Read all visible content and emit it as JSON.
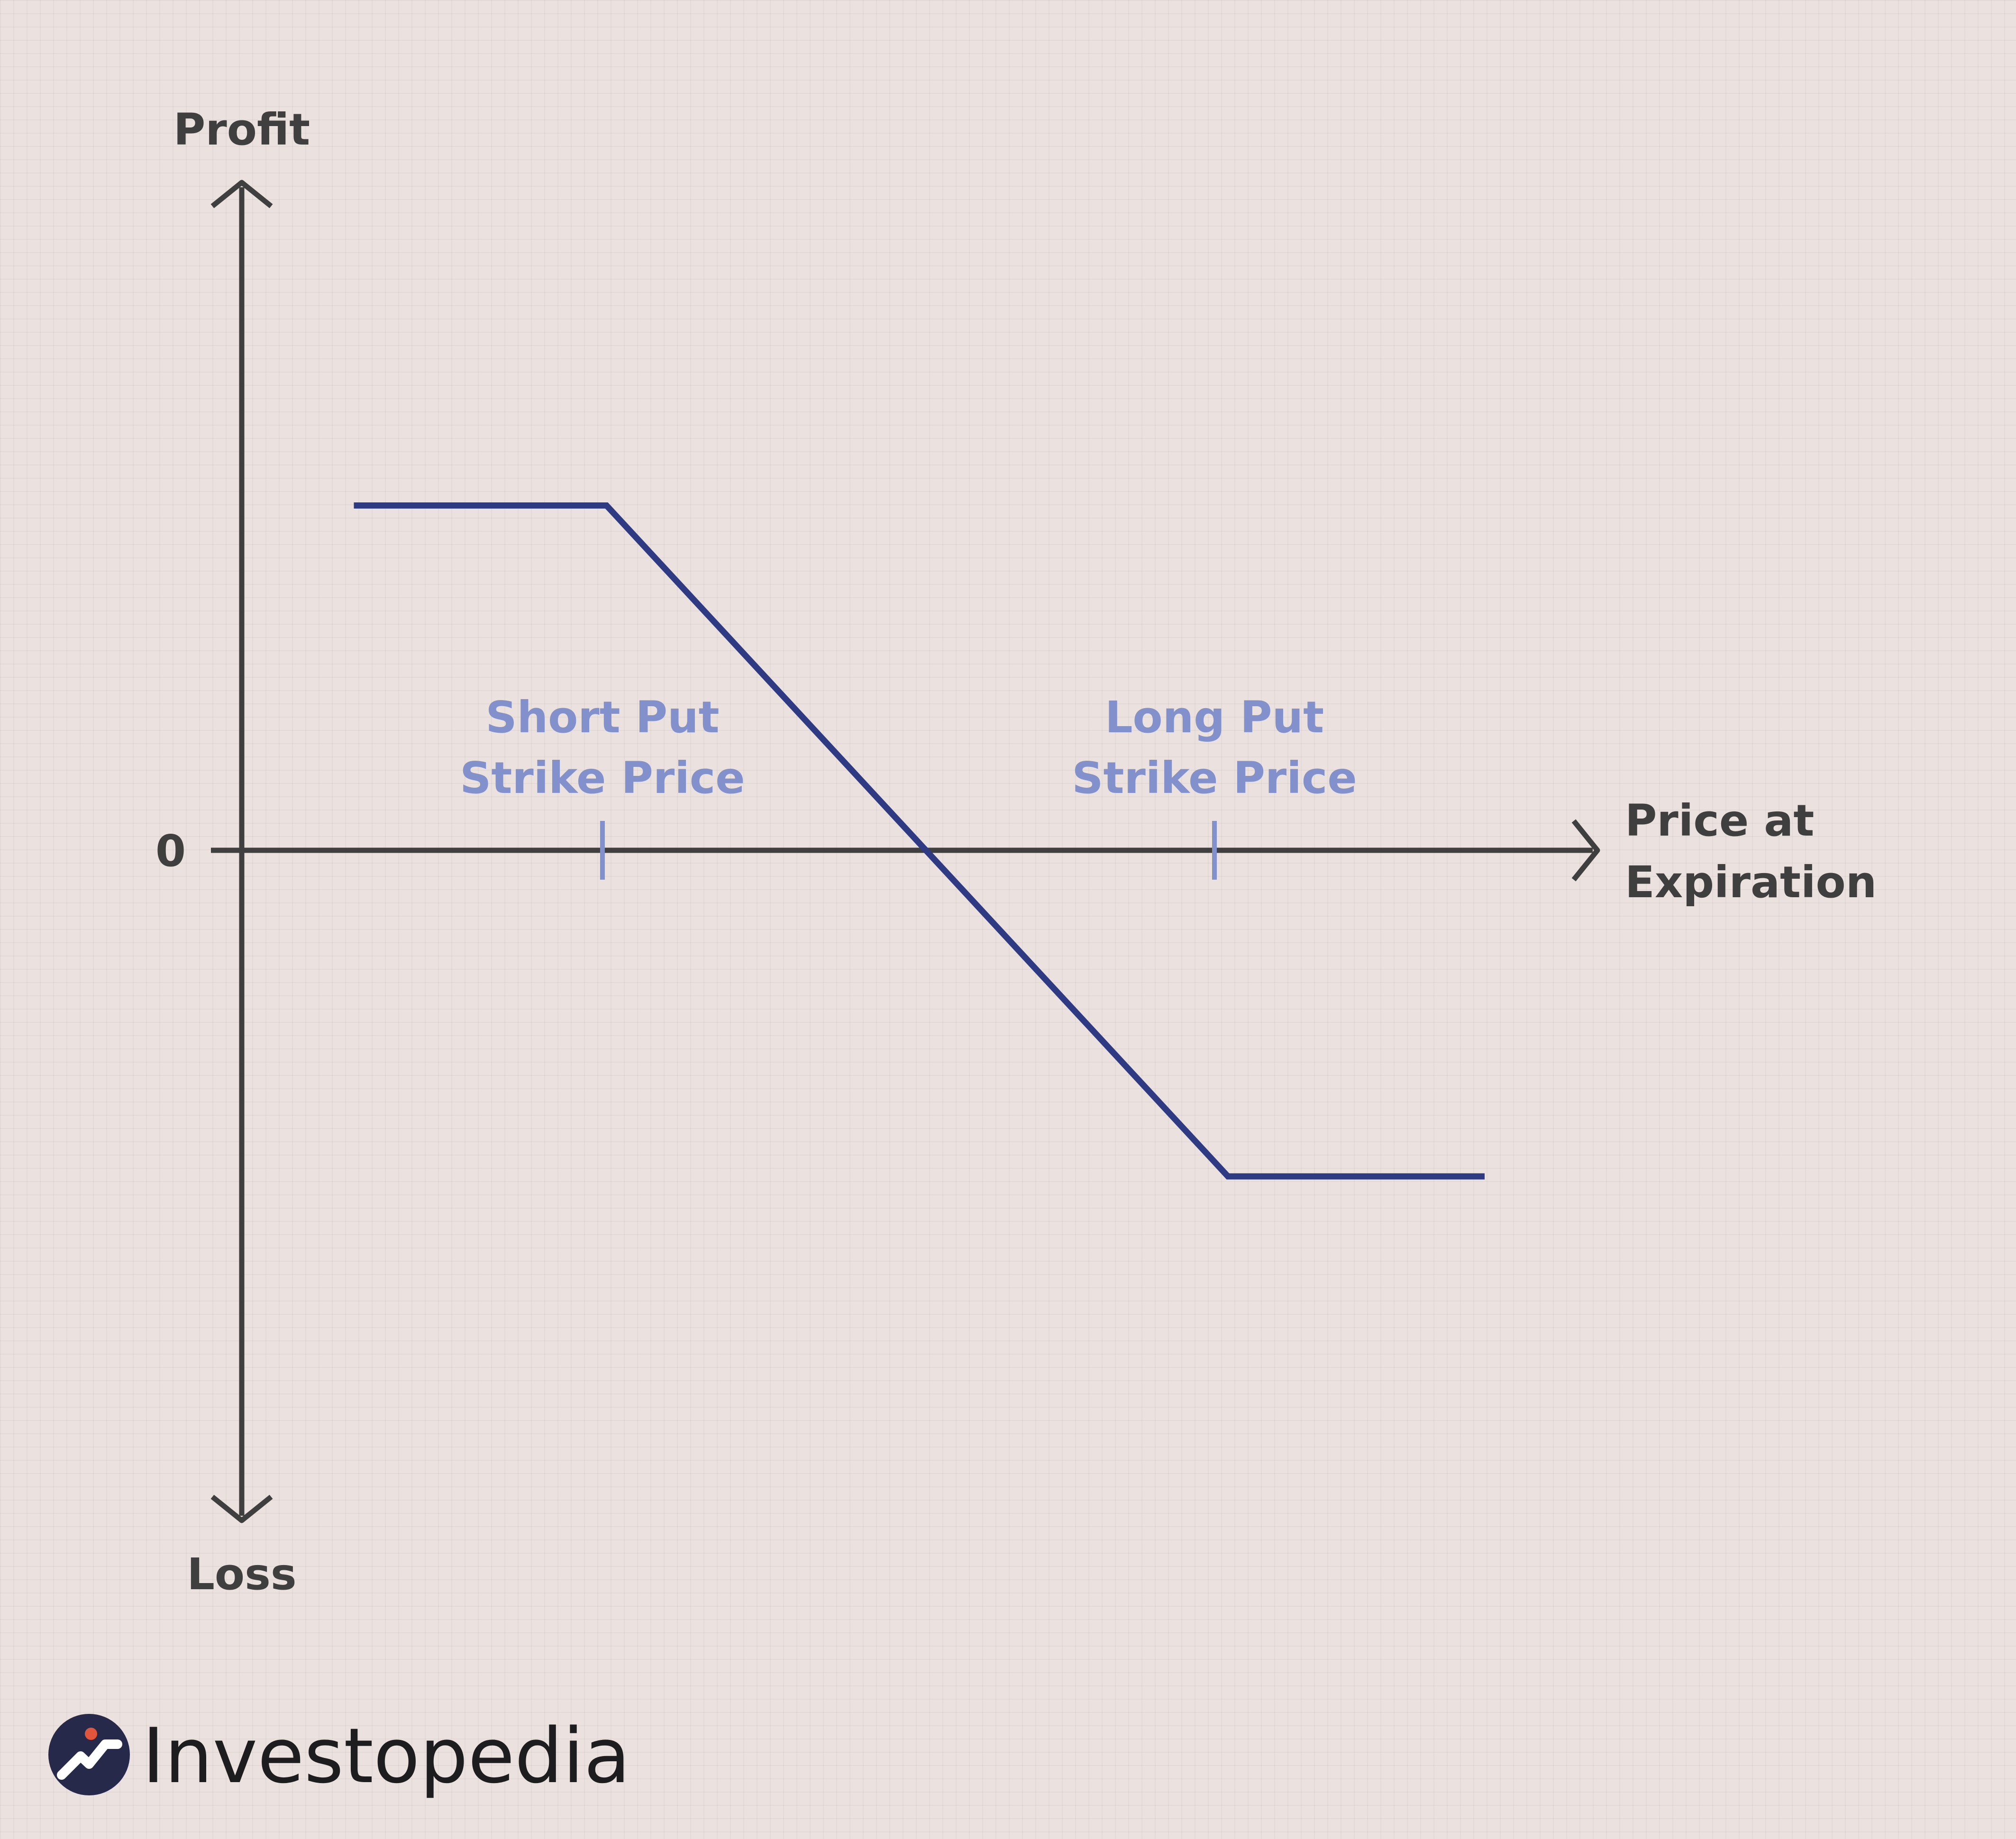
{
  "chart_data": {
    "type": "line",
    "ylabel_top": "Profit",
    "ylabel_bottom": "Loss",
    "xlabel": [
      "Price at",
      "Expiration"
    ],
    "zero_label": "0",
    "xlim": [
      0,
      100
    ],
    "ylim": [
      -100,
      100
    ],
    "series": [
      {
        "points": [
          {
            "x": 8.3,
            "y": 52
          },
          {
            "x": 27,
            "y": 52
          },
          {
            "x": 73,
            "y": -49
          },
          {
            "x": 92,
            "y": -49
          }
        ]
      }
    ],
    "strikes": [
      {
        "x": 26.7,
        "label": [
          "Short Put",
          "Strike Price"
        ]
      },
      {
        "x": 72,
        "label": [
          "Long Put",
          "Strike Price"
        ]
      }
    ],
    "colors": {
      "axis": "#3f3f3f",
      "line": "#2e3a82",
      "strike": "#8290cc"
    }
  },
  "brand": {
    "name": "Investopedia",
    "icon": "investopedia-logo-icon"
  }
}
